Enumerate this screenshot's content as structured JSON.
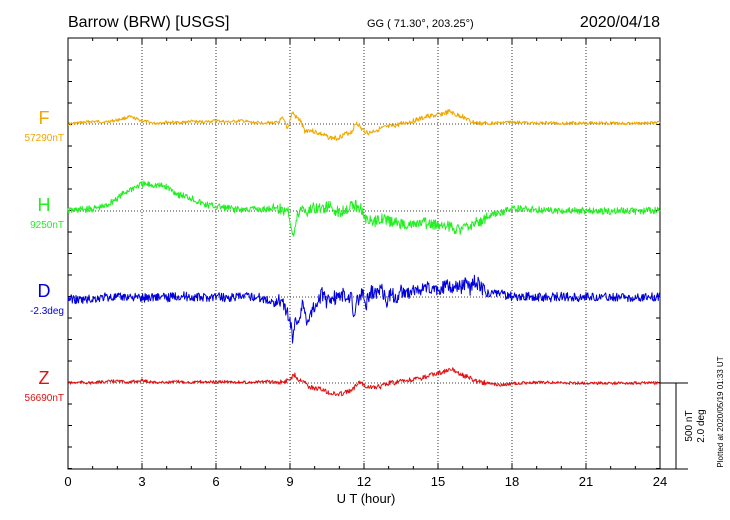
{
  "chart_data": {
    "type": "line",
    "title": {
      "station": "Barrow (BRW)  [USGS]",
      "coords": "GG ( 71.30°, 203.25°)",
      "date": "2020/04/18"
    },
    "xlabel": "U T (hour)",
    "xlim": [
      0,
      24
    ],
    "xticks": [
      "0",
      "3",
      "6",
      "9",
      "12",
      "15",
      "18",
      "21",
      "24"
    ],
    "scale_label": "500 nT",
    "scale_label_2": "2.0 deg",
    "footnote": "Plotted at 2020/05/19 01:33 UT",
    "colors": {
      "F": "#f0a800",
      "H": "#22ee22",
      "D": "#0000dd",
      "Z": "#e01010"
    },
    "series": [
      {
        "name": "F",
        "baseline": "57290nT",
        "points": [
          [
            0,
            0
          ],
          [
            0.5,
            -10
          ],
          [
            1,
            -20
          ],
          [
            1.5,
            -15
          ],
          [
            2,
            -30
          ],
          [
            2.5,
            -55
          ],
          [
            3,
            -25
          ],
          [
            3.5,
            -5
          ],
          [
            4,
            -15
          ],
          [
            4.5,
            -10
          ],
          [
            5,
            -20
          ],
          [
            5.5,
            -15
          ],
          [
            6,
            -25
          ],
          [
            6.5,
            -15
          ],
          [
            7,
            -25
          ],
          [
            7.5,
            -10
          ],
          [
            8,
            -10
          ],
          [
            8.5,
            -10
          ],
          [
            8.7,
            -40
          ],
          [
            8.9,
            35
          ],
          [
            9.1,
            -90
          ],
          [
            9.25,
            -50
          ],
          [
            9.4,
            -30
          ],
          [
            9.6,
            55
          ],
          [
            9.8,
            45
          ],
          [
            10,
            60
          ],
          [
            10.3,
            80
          ],
          [
            10.6,
            105
          ],
          [
            10.9,
            110
          ],
          [
            11.2,
            80
          ],
          [
            11.5,
            60
          ],
          [
            11.7,
            -15
          ],
          [
            11.9,
            40
          ],
          [
            12.2,
            70
          ],
          [
            12.5,
            45
          ],
          [
            12.8,
            30
          ],
          [
            13.2,
            15
          ],
          [
            13.6,
            -5
          ],
          [
            14,
            -25
          ],
          [
            14.3,
            -40
          ],
          [
            14.6,
            -60
          ],
          [
            14.9,
            -65
          ],
          [
            15.2,
            -80
          ],
          [
            15.5,
            -95
          ],
          [
            15.7,
            -70
          ],
          [
            16,
            -60
          ],
          [
            16.3,
            -20
          ],
          [
            16.6,
            -5
          ],
          [
            17,
            -5
          ],
          [
            17.5,
            -10
          ],
          [
            18,
            -15
          ],
          [
            18.5,
            -10
          ],
          [
            19,
            -5
          ],
          [
            19.5,
            -10
          ],
          [
            20,
            -5
          ],
          [
            21,
            -10
          ],
          [
            22,
            -5
          ],
          [
            23,
            -5
          ],
          [
            24,
            -10
          ]
        ]
      },
      {
        "name": "H",
        "baseline": "9250nT",
        "points": [
          [
            0,
            0
          ],
          [
            0.5,
            -10
          ],
          [
            1,
            -15
          ],
          [
            1.5,
            -35
          ],
          [
            2,
            -100
          ],
          [
            2.5,
            -165
          ],
          [
            3,
            -205
          ],
          [
            3.5,
            -200
          ],
          [
            4,
            -185
          ],
          [
            4.5,
            -125
          ],
          [
            5,
            -100
          ],
          [
            5.5,
            -50
          ],
          [
            6,
            -35
          ],
          [
            6.5,
            -20
          ],
          [
            7,
            -10
          ],
          [
            7.5,
            -15
          ],
          [
            8,
            -10
          ],
          [
            8.4,
            -35
          ],
          [
            8.7,
            0
          ],
          [
            8.9,
            -20
          ],
          [
            9.05,
            110
          ],
          [
            9.15,
            190
          ],
          [
            9.3,
            40
          ],
          [
            9.5,
            -35
          ],
          [
            9.7,
            15
          ],
          [
            9.9,
            -25
          ],
          [
            10.2,
            -15
          ],
          [
            10.6,
            -35
          ],
          [
            11,
            15
          ],
          [
            11.3,
            -25
          ],
          [
            11.6,
            -45
          ],
          [
            11.9,
            -20
          ],
          [
            12.1,
            70
          ],
          [
            12.4,
            90
          ],
          [
            12.7,
            50
          ],
          [
            13,
            80
          ],
          [
            13.3,
            90
          ],
          [
            13.6,
            100
          ],
          [
            14,
            110
          ],
          [
            14.4,
            90
          ],
          [
            14.8,
            110
          ],
          [
            15.2,
            100
          ],
          [
            15.6,
            130
          ],
          [
            16,
            140
          ],
          [
            16.4,
            100
          ],
          [
            16.8,
            70
          ],
          [
            17.2,
            30
          ],
          [
            17.6,
            10
          ],
          [
            18,
            -20
          ],
          [
            18.5,
            -15
          ],
          [
            19,
            -10
          ],
          [
            19.5,
            -5
          ],
          [
            20,
            -5
          ],
          [
            21,
            0
          ],
          [
            22,
            0
          ],
          [
            23,
            0
          ],
          [
            24,
            -5
          ]
        ]
      },
      {
        "name": "D",
        "baseline": "-2.3deg",
        "points": [
          [
            0,
            10
          ],
          [
            0.5,
            25
          ],
          [
            1,
            15
          ],
          [
            1.5,
            0
          ],
          [
            2,
            5
          ],
          [
            2.5,
            -5
          ],
          [
            3,
            10
          ],
          [
            3.5,
            -5
          ],
          [
            4,
            5
          ],
          [
            4.5,
            -10
          ],
          [
            5,
            0
          ],
          [
            5.5,
            5
          ],
          [
            6,
            -5
          ],
          [
            6.5,
            5
          ],
          [
            7,
            0
          ],
          [
            7.5,
            -5
          ],
          [
            8,
            15
          ],
          [
            8.3,
            45
          ],
          [
            8.6,
            20
          ],
          [
            8.8,
            80
          ],
          [
            9,
            180
          ],
          [
            9.1,
            300
          ],
          [
            9.2,
            200
          ],
          [
            9.4,
            150
          ],
          [
            9.5,
            60
          ],
          [
            9.7,
            180
          ],
          [
            9.9,
            100
          ],
          [
            10.1,
            30
          ],
          [
            10.3,
            -20
          ],
          [
            10.5,
            40
          ],
          [
            10.7,
            -10
          ],
          [
            10.9,
            15
          ],
          [
            11.1,
            -20
          ],
          [
            11.3,
            10
          ],
          [
            11.5,
            -10
          ],
          [
            11.6,
            160
          ],
          [
            11.7,
            40
          ],
          [
            11.9,
            -30
          ],
          [
            12.1,
            50
          ],
          [
            12.3,
            -40
          ],
          [
            12.5,
            -20
          ],
          [
            12.7,
            -80
          ],
          [
            12.9,
            40
          ],
          [
            13.1,
            -30
          ],
          [
            13.3,
            20
          ],
          [
            13.5,
            -60
          ],
          [
            13.7,
            -10
          ],
          [
            13.9,
            -50
          ],
          [
            14.1,
            -60
          ],
          [
            14.3,
            -30
          ],
          [
            14.5,
            -90
          ],
          [
            14.7,
            -30
          ],
          [
            14.9,
            -70
          ],
          [
            15.1,
            -50
          ],
          [
            15.3,
            -90
          ],
          [
            15.5,
            -70
          ],
          [
            15.7,
            -100
          ],
          [
            15.9,
            -70
          ],
          [
            16.1,
            -110
          ],
          [
            16.3,
            -60
          ],
          [
            16.5,
            -130
          ],
          [
            16.7,
            -80
          ],
          [
            16.9,
            -40
          ],
          [
            17.1,
            -20
          ],
          [
            17.4,
            -30
          ],
          [
            17.8,
            -10
          ],
          [
            18.2,
            0
          ],
          [
            18.6,
            -5
          ],
          [
            19,
            0
          ],
          [
            19.5,
            5
          ],
          [
            20,
            -5
          ],
          [
            20.5,
            5
          ],
          [
            21,
            -5
          ],
          [
            21.5,
            0
          ],
          [
            22,
            5
          ],
          [
            22.5,
            0
          ],
          [
            23,
            5
          ],
          [
            23.5,
            0
          ],
          [
            24,
            -5
          ]
        ]
      },
      {
        "name": "Z",
        "baseline": "56690nT",
        "points": [
          [
            0,
            0
          ],
          [
            0.5,
            -5
          ],
          [
            1,
            0
          ],
          [
            1.5,
            -10
          ],
          [
            2,
            -15
          ],
          [
            2.5,
            -5
          ],
          [
            3,
            -20
          ],
          [
            3.5,
            -5
          ],
          [
            4,
            -5
          ],
          [
            4.5,
            -10
          ],
          [
            5,
            -5
          ],
          [
            5.5,
            -10
          ],
          [
            6,
            -5
          ],
          [
            6.5,
            -10
          ],
          [
            7,
            -5
          ],
          [
            7.5,
            -5
          ],
          [
            8,
            -10
          ],
          [
            8.5,
            -5
          ],
          [
            8.8,
            -10
          ],
          [
            9,
            -35
          ],
          [
            9.2,
            -65
          ],
          [
            9.35,
            -25
          ],
          [
            9.5,
            -30
          ],
          [
            9.8,
            35
          ],
          [
            10.2,
            45
          ],
          [
            10.6,
            75
          ],
          [
            10.9,
            90
          ],
          [
            11.2,
            75
          ],
          [
            11.5,
            60
          ],
          [
            11.8,
            -15
          ],
          [
            12.1,
            25
          ],
          [
            12.4,
            35
          ],
          [
            12.7,
            25
          ],
          [
            13,
            0
          ],
          [
            13.3,
            -5
          ],
          [
            13.6,
            -15
          ],
          [
            14,
            -25
          ],
          [
            14.4,
            -40
          ],
          [
            14.8,
            -65
          ],
          [
            15.2,
            -85
          ],
          [
            15.6,
            -100
          ],
          [
            15.9,
            -70
          ],
          [
            16.2,
            -45
          ],
          [
            16.6,
            -10
          ],
          [
            17,
            0
          ],
          [
            17.5,
            15
          ],
          [
            18,
            5
          ],
          [
            18.5,
            0
          ],
          [
            19,
            -5
          ],
          [
            19.5,
            -5
          ],
          [
            20,
            0
          ],
          [
            21,
            0
          ],
          [
            22,
            0
          ],
          [
            23,
            0
          ],
          [
            24,
            0
          ]
        ]
      }
    ]
  }
}
